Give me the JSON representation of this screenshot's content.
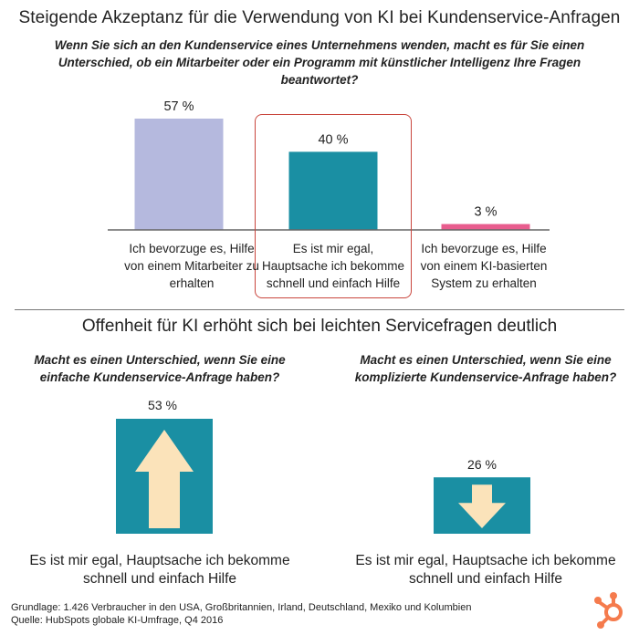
{
  "title": "Steigende Akzeptanz für die Verwendung von KI bei Kundenservice-Anfragen",
  "question": "Wenn Sie sich an den Kundenservice eines Unternehmens wenden, macht es für Sie einen Unterschied, ob ein Mitarbeiter oder ein Programm mit künstlicher Intelligenz Ihre Fragen beantwortet?",
  "chart_data": [
    {
      "type": "bar",
      "categories": [
        "Ich bevorzuge es, Hilfe von einem Mitarbeiter zu erhalten",
        "Es ist mir egal, Hauptsache ich bekomme schnell und einfach Hilfe",
        "Ich bevorzuge es, Hilfe von einem KI-basierten System zu erhalten"
      ],
      "values": [
        57,
        40,
        3
      ],
      "value_labels": [
        "57 %",
        "40 %",
        "3 %"
      ],
      "colors": [
        "#b5b9de",
        "#1a8fa3",
        "#e85d8e"
      ],
      "highlighted_category": "Es ist mir egal, Hauptsache ich bekomme schnell und einfach Hilfe",
      "highlight_color": "#c9463d",
      "ylim": [
        0,
        57
      ]
    },
    {
      "type": "bar",
      "title": "Offenheit für KI erhöht sich bei leichten Servicefragen deutlich",
      "panels": [
        {
          "question": "Macht es einen Unterschied, wenn Sie eine einfache Kundenservice-Anfrage haben?",
          "answer": "Es ist mir egal, Hauptsache ich bekomme schnell und einfach Hilfe",
          "value": 53,
          "value_label": "53 %",
          "arrow": "up-arrow-icon"
        },
        {
          "question": "Macht es einen Unterschied, wenn Sie eine komplizierte Kundenservice-Anfrage haben?",
          "answer": "Es ist mir egal, Hauptsache ich bekomme schnell und einfach Hilfe",
          "value": 26,
          "value_label": "26 %",
          "arrow": "down-arrow-icon"
        }
      ],
      "bar_color": "#1a8fa3",
      "arrow_color": "#fbe3ba",
      "ylim": [
        0,
        53
      ]
    }
  ],
  "footer": {
    "basis": "Grundlage: 1.426 Verbraucher in den USA, Großbritannien, Irland, Deutschland, Mexiko und Kolumbien",
    "source": "Quelle: HubSpots globale KI-Umfrage, Q4 2016"
  },
  "logo": {
    "icon": "hubspot-sprocket-icon",
    "color": "#f57b4d"
  }
}
